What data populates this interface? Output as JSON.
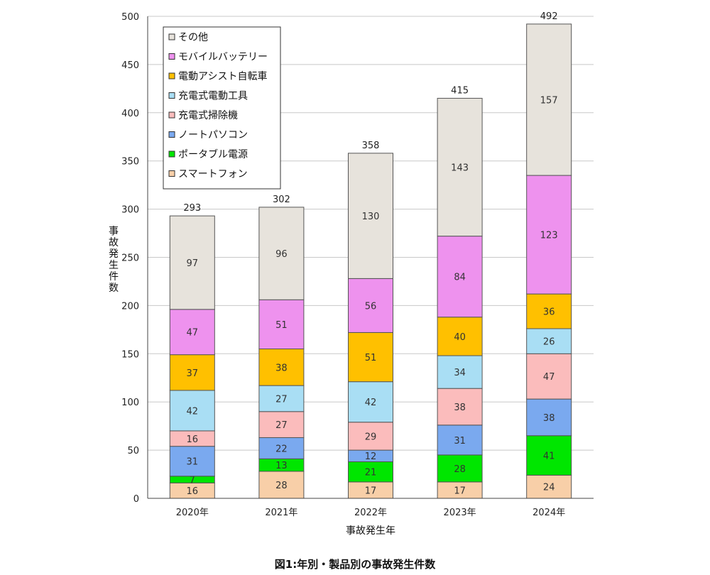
{
  "chart_data": {
    "type": "bar",
    "stacked": true,
    "categories": [
      "2020年",
      "2021年",
      "2022年",
      "2023年",
      "2024年"
    ],
    "totals": [
      293,
      302,
      358,
      415,
      492
    ],
    "series": [
      {
        "name": "スマートフォン",
        "color": "#f8cfa8",
        "values": [
          16,
          28,
          17,
          17,
          24
        ]
      },
      {
        "name": "ポータブル電源",
        "color": "#00e600",
        "values": [
          7,
          13,
          21,
          28,
          41
        ]
      },
      {
        "name": "ノートパソコン",
        "color": "#7aa9ef",
        "values": [
          31,
          22,
          12,
          31,
          38
        ]
      },
      {
        "name": "充電式掃除機",
        "color": "#fbbcbc",
        "values": [
          16,
          27,
          29,
          38,
          47
        ]
      },
      {
        "name": "充電式電動工具",
        "color": "#a9def4",
        "values": [
          42,
          27,
          42,
          34,
          26
        ]
      },
      {
        "name": "電動アシスト自転車",
        "color": "#ffc000",
        "values": [
          37,
          38,
          51,
          40,
          36
        ]
      },
      {
        "name": "モバイルバッテリー",
        "color": "#ee92ee",
        "values": [
          47,
          51,
          56,
          84,
          123
        ]
      },
      {
        "name": "その他",
        "color": "#e7e3dc",
        "values": [
          97,
          96,
          130,
          143,
          157
        ]
      }
    ],
    "xlabel": "事故発生年",
    "ylabel": "事故発生件数",
    "ylim": [
      0,
      500
    ],
    "yticks": [
      0,
      50,
      100,
      150,
      200,
      250,
      300,
      350,
      400,
      450,
      500
    ],
    "grid": true,
    "legend_position": "top-left"
  },
  "caption": "図1:年別・製品別の事故発生件数"
}
